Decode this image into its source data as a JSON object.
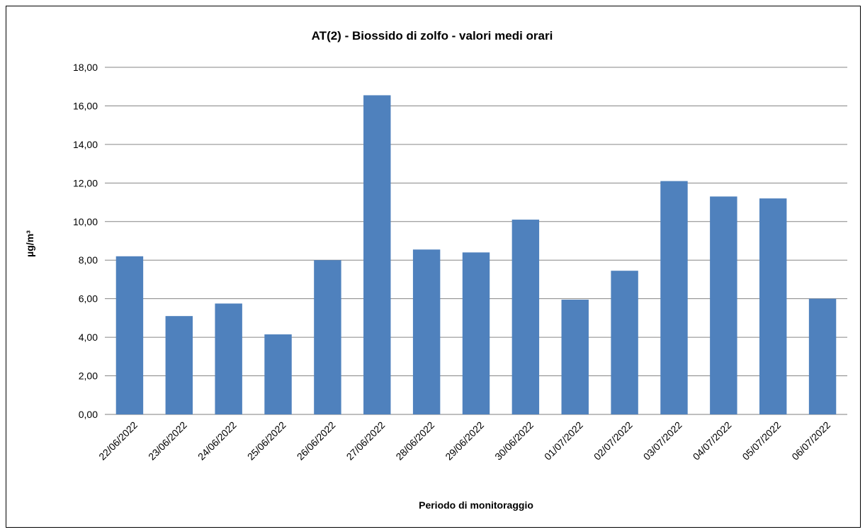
{
  "chart_data": {
    "type": "bar",
    "title": "AT(2) - Biossido di zolfo - valori medi orari",
    "xlabel": "Periodo di  monitoraggio",
    "ylabel": "µg/m³",
    "ylim": [
      0,
      18
    ],
    "ytick_step": 2,
    "ytick_labels": [
      "0,00",
      "2,00",
      "4,00",
      "6,00",
      "8,00",
      "10,00",
      "12,00",
      "14,00",
      "16,00",
      "18,00"
    ],
    "categories": [
      "22/06/2022",
      "23/06/2022",
      "24/06/2022",
      "25/06/2022",
      "26/06/2022",
      "27/06/2022",
      "28/06/2022",
      "29/06/2022",
      "30/06/2022",
      "01/07/2022",
      "02/07/2022",
      "03/07/2022",
      "04/07/2022",
      "05/07/2022",
      "06/07/2022"
    ],
    "values": [
      8.2,
      5.1,
      5.75,
      4.15,
      8.0,
      16.55,
      8.55,
      8.4,
      10.1,
      5.95,
      7.45,
      12.1,
      11.3,
      11.2,
      6.0
    ],
    "bar_color": "#4F81BD",
    "grid": true,
    "legend": "none"
  }
}
